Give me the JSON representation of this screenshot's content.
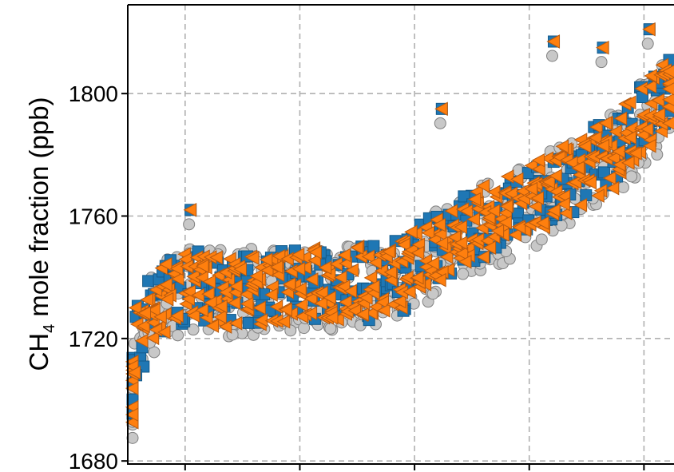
{
  "chart_data": {
    "type": "scatter",
    "ylabel_main": "CH",
    "ylabel_sub": "4",
    "ylabel_rest": " mole fraction (ppb)",
    "xlabel": "",
    "y_ticks": [
      "1680",
      "1720",
      "1760",
      "1800"
    ],
    "y_tick_values": [
      1680,
      1720,
      1760,
      1800
    ],
    "ylim": [
      1679,
      1829
    ],
    "xlim": [
      0,
      1
    ],
    "x_tick_values": [
      0.105,
      0.315,
      0.525,
      0.735,
      0.945
    ],
    "grid": true,
    "colors": {
      "observed": "#c8c8c8",
      "observed_edge": "#808080",
      "model_a": "#1f77b4",
      "model_b": "#ff7f0e",
      "model_b_edge": "#b65a10"
    },
    "series": [
      {
        "marker": "circle",
        "x": [
          0.0,
          0.02,
          0.04,
          0.06,
          0.08,
          0.1,
          0.12,
          0.14,
          0.16,
          0.18,
          0.2,
          0.22,
          0.24,
          0.26,
          0.28,
          0.3,
          0.32,
          0.34,
          0.36,
          0.38,
          0.4,
          0.42,
          0.44,
          0.46,
          0.48,
          0.5,
          0.52,
          0.54,
          0.56,
          0.58,
          0.6,
          0.62,
          0.64,
          0.66,
          0.68,
          0.7,
          0.72,
          0.74,
          0.76,
          0.78,
          0.8,
          0.82,
          0.84,
          0.86,
          0.88,
          0.9,
          0.92,
          0.94,
          0.96,
          0.98,
          1.0
        ],
        "y": [
          1700,
          1718,
          1728,
          1733,
          1734,
          1735,
          1736,
          1736,
          1735,
          1734,
          1735,
          1736,
          1735,
          1735,
          1736,
          1736,
          1737,
          1737,
          1736,
          1736,
          1737,
          1738,
          1737,
          1738,
          1739,
          1740,
          1742,
          1745,
          1748,
          1750,
          1752,
          1754,
          1756,
          1757,
          1758,
          1760,
          1762,
          1764,
          1766,
          1768,
          1770,
          1772,
          1774,
          1777,
          1780,
          1783,
          1786,
          1790,
          1793,
          1797,
          1800
        ]
      },
      {
        "marker": "square",
        "x": [
          0.0,
          0.02,
          0.04,
          0.06,
          0.08,
          0.1,
          0.12,
          0.14,
          0.16,
          0.18,
          0.2,
          0.22,
          0.24,
          0.26,
          0.28,
          0.3,
          0.32,
          0.34,
          0.36,
          0.38,
          0.4,
          0.42,
          0.44,
          0.46,
          0.48,
          0.5,
          0.52,
          0.54,
          0.56,
          0.58,
          0.6,
          0.62,
          0.64,
          0.66,
          0.68,
          0.7,
          0.72,
          0.74,
          0.76,
          0.78,
          0.8,
          0.82,
          0.84,
          0.86,
          0.88,
          0.9,
          0.92,
          0.94,
          0.96,
          0.98,
          1.0
        ],
        "y": [
          1702,
          1719,
          1729,
          1734,
          1735,
          1736,
          1737,
          1737,
          1736,
          1735,
          1736,
          1737,
          1736,
          1736,
          1737,
          1737,
          1738,
          1738,
          1737,
          1737,
          1738,
          1739,
          1738,
          1739,
          1740,
          1741,
          1743,
          1746,
          1749,
          1751,
          1753,
          1755,
          1757,
          1758,
          1759,
          1761,
          1763,
          1765,
          1767,
          1769,
          1771,
          1773,
          1775,
          1778,
          1781,
          1784,
          1787,
          1791,
          1794,
          1798,
          1801
        ]
      },
      {
        "marker": "triangle-left",
        "x": [
          0.0,
          0.02,
          0.04,
          0.06,
          0.08,
          0.1,
          0.12,
          0.14,
          0.16,
          0.18,
          0.2,
          0.22,
          0.24,
          0.26,
          0.28,
          0.3,
          0.32,
          0.34,
          0.36,
          0.38,
          0.4,
          0.42,
          0.44,
          0.46,
          0.48,
          0.5,
          0.52,
          0.54,
          0.56,
          0.58,
          0.6,
          0.62,
          0.64,
          0.66,
          0.68,
          0.7,
          0.72,
          0.74,
          0.76,
          0.78,
          0.8,
          0.82,
          0.84,
          0.86,
          0.88,
          0.9,
          0.92,
          0.94,
          0.96,
          0.98,
          1.0
        ],
        "y": [
          1702,
          1719,
          1729,
          1734,
          1735,
          1736,
          1737,
          1737,
          1736,
          1735,
          1736,
          1737,
          1736,
          1736,
          1737,
          1737,
          1738,
          1738,
          1737,
          1737,
          1738,
          1739,
          1738,
          1739,
          1740,
          1741,
          1743,
          1746,
          1749,
          1751,
          1753,
          1755,
          1757,
          1758,
          1759,
          1761,
          1763,
          1765,
          1767,
          1769,
          1771,
          1773,
          1775,
          1778,
          1781,
          1784,
          1787,
          1791,
          1794,
          1798,
          1801
        ]
      }
    ],
    "outliers": [
      {
        "x": 0.115,
        "y": 1762
      },
      {
        "x": 0.78,
        "y": 1817
      },
      {
        "x": 0.87,
        "y": 1815
      },
      {
        "x": 0.955,
        "y": 1821
      },
      {
        "x": 0.575,
        "y": 1795
      }
    ]
  }
}
